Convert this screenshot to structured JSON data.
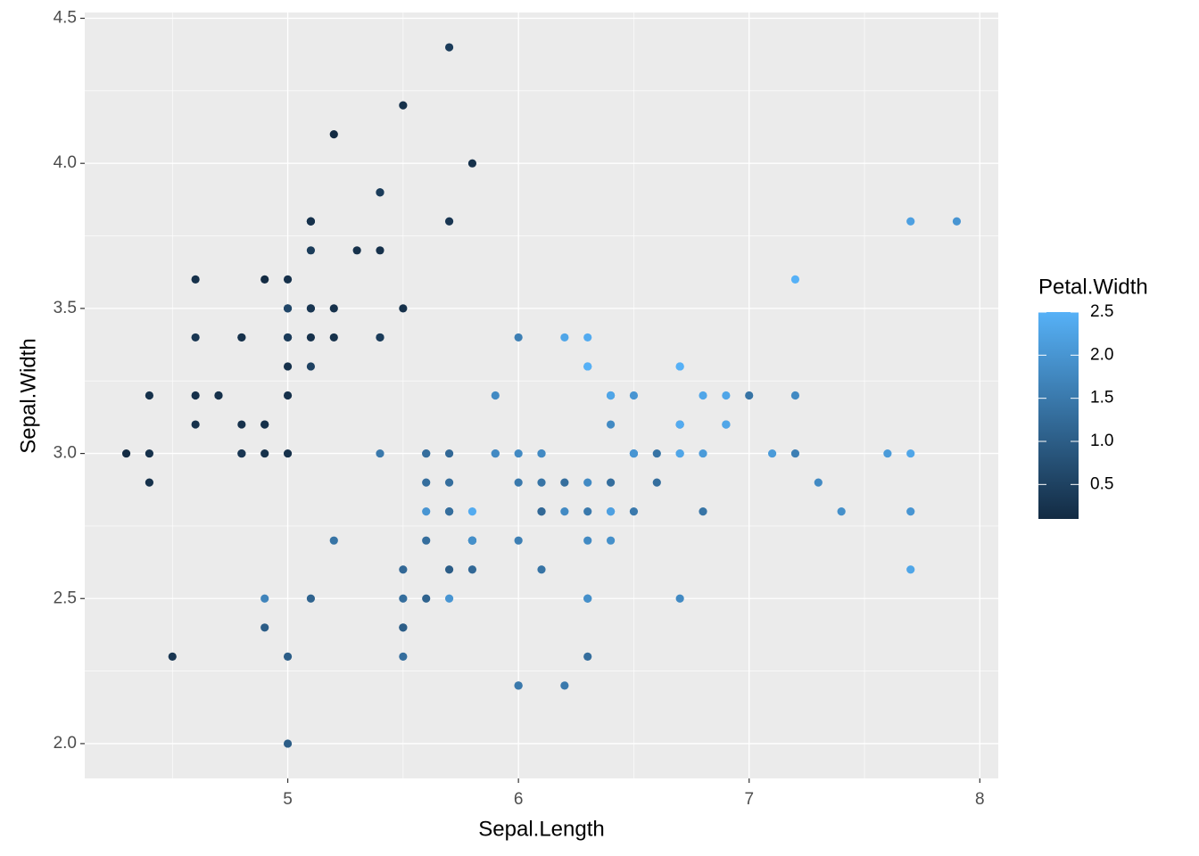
{
  "chart_data": {
    "type": "scatter",
    "x_label": "Sepal.Length",
    "y_label": "Sepal.Width",
    "x": [
      5.1,
      4.9,
      4.7,
      4.6,
      5.0,
      5.4,
      4.6,
      5.0,
      4.4,
      4.9,
      5.4,
      4.8,
      4.8,
      4.3,
      5.8,
      5.7,
      5.4,
      5.1,
      5.7,
      5.1,
      5.4,
      5.1,
      4.6,
      5.1,
      4.8,
      5.0,
      5.0,
      5.2,
      5.2,
      4.7,
      4.8,
      5.4,
      5.2,
      5.5,
      4.9,
      5.0,
      5.5,
      4.9,
      4.4,
      5.1,
      5.0,
      4.5,
      4.4,
      5.0,
      5.1,
      4.8,
      5.1,
      4.6,
      5.3,
      5.0,
      7.0,
      6.4,
      6.9,
      5.5,
      6.5,
      5.7,
      6.3,
      4.9,
      6.6,
      5.2,
      5.0,
      5.9,
      6.0,
      6.1,
      5.6,
      6.7,
      5.6,
      5.8,
      6.2,
      5.6,
      5.9,
      6.1,
      6.3,
      6.1,
      6.4,
      6.6,
      6.8,
      6.7,
      6.0,
      5.7,
      5.5,
      5.5,
      5.8,
      6.0,
      5.4,
      6.0,
      6.7,
      6.3,
      5.6,
      5.5,
      5.5,
      6.1,
      5.8,
      5.0,
      5.6,
      5.7,
      5.7,
      6.2,
      5.1,
      5.7,
      6.3,
      5.8,
      7.1,
      6.3,
      6.5,
      7.6,
      4.9,
      7.3,
      6.7,
      7.2,
      6.5,
      6.4,
      6.8,
      5.7,
      5.8,
      6.4,
      6.5,
      7.7,
      7.7,
      6.0,
      6.9,
      5.6,
      7.7,
      6.3,
      6.7,
      7.2,
      6.2,
      6.1,
      6.4,
      7.2,
      7.4,
      7.9,
      6.4,
      6.3,
      6.1,
      7.7,
      6.3,
      6.4,
      6.0,
      6.9,
      6.7,
      6.9,
      5.8,
      6.8,
      6.7,
      6.7,
      6.3,
      6.5,
      6.2,
      5.9
    ],
    "y": [
      3.5,
      3.0,
      3.2,
      3.1,
      3.6,
      3.9,
      3.4,
      3.4,
      2.9,
      3.1,
      3.7,
      3.4,
      3.0,
      3.0,
      4.0,
      4.4,
      3.9,
      3.5,
      3.8,
      3.8,
      3.4,
      3.7,
      3.6,
      3.3,
      3.4,
      3.0,
      3.4,
      3.5,
      3.4,
      3.2,
      3.1,
      3.4,
      4.1,
      4.2,
      3.1,
      3.2,
      3.5,
      3.6,
      3.0,
      3.4,
      3.5,
      2.3,
      3.2,
      3.5,
      3.8,
      3.0,
      3.8,
      3.2,
      3.7,
      3.3,
      3.2,
      3.2,
      3.1,
      2.3,
      2.8,
      2.8,
      3.3,
      2.4,
      2.9,
      2.7,
      2.0,
      3.0,
      2.2,
      2.9,
      2.9,
      3.1,
      3.0,
      2.7,
      2.2,
      2.5,
      3.2,
      2.8,
      2.5,
      2.8,
      2.9,
      3.0,
      2.8,
      3.0,
      2.9,
      2.6,
      2.4,
      2.4,
      2.7,
      2.7,
      3.0,
      3.4,
      3.1,
      2.3,
      3.0,
      2.5,
      2.6,
      3.0,
      2.6,
      2.3,
      2.7,
      3.0,
      2.9,
      2.9,
      2.5,
      2.8,
      3.3,
      2.7,
      3.0,
      2.9,
      3.0,
      3.0,
      2.5,
      2.9,
      2.5,
      3.6,
      3.2,
      2.7,
      3.0,
      2.5,
      2.8,
      3.2,
      3.0,
      3.8,
      2.6,
      2.2,
      3.2,
      2.8,
      2.8,
      2.7,
      3.3,
      3.2,
      2.8,
      3.0,
      2.8,
      3.0,
      2.8,
      3.8,
      2.8,
      2.8,
      2.6,
      3.0,
      3.4,
      3.1,
      3.0,
      3.1,
      3.1,
      3.1,
      2.7,
      3.2,
      3.3,
      3.0,
      2.5,
      3.0,
      3.4,
      3.0
    ],
    "color_name": "Petal.Width",
    "color_values": [
      0.2,
      0.2,
      0.2,
      0.2,
      0.2,
      0.4,
      0.3,
      0.2,
      0.2,
      0.1,
      0.2,
      0.2,
      0.1,
      0.1,
      0.2,
      0.4,
      0.4,
      0.3,
      0.3,
      0.3,
      0.2,
      0.4,
      0.2,
      0.5,
      0.2,
      0.2,
      0.4,
      0.2,
      0.2,
      0.2,
      0.2,
      0.4,
      0.1,
      0.2,
      0.2,
      0.2,
      0.2,
      0.1,
      0.2,
      0.2,
      0.3,
      0.3,
      0.2,
      0.6,
      0.4,
      0.3,
      0.2,
      0.2,
      0.2,
      0.2,
      1.4,
      1.5,
      1.5,
      1.3,
      1.5,
      1.3,
      1.6,
      1.0,
      1.3,
      1.4,
      1.0,
      1.5,
      1.0,
      1.4,
      1.3,
      1.4,
      1.5,
      1.0,
      1.5,
      1.1,
      1.8,
      1.3,
      1.5,
      1.2,
      1.3,
      1.4,
      1.4,
      1.7,
      1.5,
      1.0,
      1.1,
      1.0,
      1.2,
      1.6,
      1.5,
      1.6,
      1.5,
      1.3,
      1.3,
      1.3,
      1.2,
      1.4,
      1.2,
      1.0,
      1.3,
      1.2,
      1.3,
      1.3,
      1.1,
      1.3,
      2.5,
      1.9,
      2.1,
      1.8,
      2.2,
      2.1,
      1.7,
      1.8,
      1.8,
      2.5,
      2.0,
      1.9,
      2.1,
      2.0,
      2.4,
      2.3,
      1.8,
      2.2,
      2.3,
      1.5,
      2.3,
      2.0,
      2.0,
      1.8,
      2.1,
      1.8,
      1.8,
      1.8,
      2.1,
      1.6,
      1.9,
      2.0,
      2.2,
      1.5,
      1.4,
      2.3,
      2.4,
      1.8,
      1.8,
      2.1,
      2.4,
      2.3,
      1.9,
      2.3,
      2.5,
      2.3,
      1.9,
      2.0,
      2.3,
      1.8
    ],
    "color_low": "#132B43",
    "color_high": "#56B1F7",
    "color_lim": [
      0.1,
      2.5
    ],
    "color_ticks": [
      0.5,
      {
        "value": 1,
        "label": "1.0"
      },
      1.5,
      {
        "value": 2,
        "label": "2.0"
      },
      2.5
    ],
    "xlim": [
      4.12,
      8.08
    ],
    "xticks": [
      5,
      6,
      7,
      8
    ],
    "x_minor_ticks": [
      4.5,
      5.5,
      6.5,
      7.5
    ],
    "ylim": [
      1.88,
      4.52
    ],
    "yticks": [
      {
        "value": 2,
        "label": "2.0"
      },
      2.5,
      {
        "value": 3,
        "label": "3.0"
      },
      3.5,
      {
        "value": 4,
        "label": "4.0"
      },
      4.5
    ],
    "y_minor_ticks": [
      2.25,
      2.75,
      3.25,
      3.75,
      4.25
    ],
    "grid": true
  }
}
